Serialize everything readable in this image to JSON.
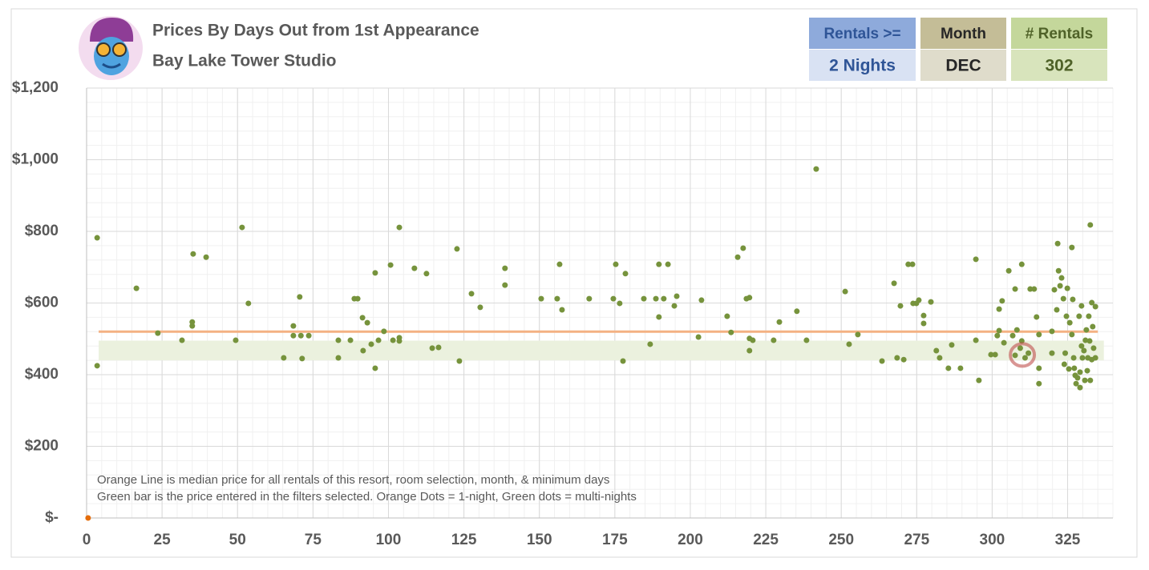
{
  "header": {
    "title": "Prices By Days Out from 1st Appearance",
    "subtitle": "Bay Lake Tower Studio"
  },
  "filters": [
    {
      "label": "Rentals >=",
      "value": "2 Nights",
      "head_color": "#8eaadb",
      "value_color": "#d9e2f3",
      "text_color": "#2f5597"
    },
    {
      "label": "Month",
      "value": "DEC",
      "head_color": "#c4bd97",
      "value_color": "#dfdccb",
      "text_color": "#262626"
    },
    {
      "label": "# Rentals",
      "value": "302",
      "head_color": "#c4d79b",
      "value_color": "#d8e4bc",
      "text_color": "#4f6228"
    }
  ],
  "chart_data": {
    "type": "scatter",
    "notes": [
      "Orange Line is median price for all rentals of this resort, room selection, month, & minimum days",
      "Green bar is the price entered in the filters selected. Orange Dots = 1-night, Green dots = multi-nights"
    ],
    "xlim": [
      0,
      340
    ],
    "xticks": [
      0,
      25,
      50,
      75,
      100,
      125,
      150,
      175,
      200,
      225,
      250,
      275,
      300,
      325
    ],
    "ylim": [
      0,
      1200
    ],
    "yticks": [
      {
        "value": 0,
        "label": "$-"
      },
      {
        "value": 200,
        "label": "$200"
      },
      {
        "value": 400,
        "label": "$400"
      },
      {
        "value": 600,
        "label": "$600"
      },
      {
        "value": 800,
        "label": "$800"
      },
      {
        "value": 1000,
        "label": "$1,000"
      },
      {
        "value": 1200,
        "label": "$1,200"
      }
    ],
    "grid": true,
    "minor_grid": true,
    "median": 520,
    "median_x": [
      4,
      335
    ],
    "median_color": "#f4b183",
    "band": [
      440,
      495
    ],
    "band_x": [
      4,
      337
    ],
    "band_color": "#ebf1de",
    "highlight": {
      "x": 310,
      "y": 455,
      "color": "#c0504d"
    },
    "series": [
      {
        "color": "#76933c",
        "x": [
          3.5,
          3.5,
          16.5,
          23.6,
          31.6,
          35.3,
          35,
          35,
          39.6,
          49.4,
          51.5,
          53.6,
          65.3,
          68.5,
          68.5,
          70.6,
          71,
          71.4,
          73.6,
          83.4,
          83.4,
          87.4,
          88.7,
          89.8,
          91.4,
          91.6,
          93,
          94.3,
          95.6,
          95.6,
          96.7,
          98.5,
          100.7,
          101.5,
          103.6,
          103.6,
          103.6,
          108.6,
          112.6,
          114.5,
          116.6,
          122.7,
          123.5,
          127.5,
          130.4,
          138.6,
          138.6,
          150.6,
          155.9,
          156.7,
          157.5,
          166.5,
          174.5,
          175.3,
          176.6,
          177.7,
          178.5,
          184.6,
          186.7,
          188.6,
          189.6,
          189.6,
          191.2,
          192.6,
          194.7,
          195.5,
          202.7,
          203.7,
          212.2,
          213.5,
          215.7,
          217.5,
          218.6,
          219.6,
          219.6,
          219.6,
          220.7,
          227.6,
          229.5,
          235.3,
          238.5,
          241.7,
          251.3,
          252.6,
          255.5,
          263.5,
          267.5,
          268.5,
          269.6,
          270.7,
          272.2,
          273.6,
          273.8,
          274.9,
          275.7,
          277.3,
          277.3,
          279.7,
          281.5,
          282.6,
          285.5,
          286.6,
          289.5,
          294.6,
          294.6,
          295.6,
          299.6,
          301,
          301.7,
          302.3,
          302.3,
          303.3,
          303.9,
          305.5,
          306.8,
          307.6,
          307.6,
          308.2,
          309.3,
          309.8,
          309.8,
          310.9,
          312,
          312.6,
          313.9,
          314.7,
          315.5,
          315.5,
          315.5,
          319.8,
          319.8,
          320.6,
          321.4,
          321.7,
          322,
          322.5,
          323,
          323.6,
          323.9,
          324.2,
          324.6,
          324.9,
          325.4,
          325.7,
          326.4,
          326.4,
          326.7,
          327,
          327.2,
          327.5,
          327.8,
          328.3,
          328.8,
          329.1,
          329.1,
          329.6,
          329.6,
          329.9,
          330.4,
          330.7,
          330.9,
          331.2,
          331.5,
          331.7,
          332,
          332.3,
          332.5,
          332.5,
          333,
          333,
          333.3,
          333.6,
          334.2,
          334.2
        ],
        "values": [
          782,
          425,
          641,
          516,
          496,
          737,
          547,
          536,
          728,
          496,
          811,
          599,
          447,
          536,
          509,
          617,
          509,
          445,
          509,
          496,
          447,
          496,
          612,
          612,
          559,
          467,
          545,
          485,
          684,
          418,
          496,
          521,
          706,
          496,
          811,
          503,
          494,
          697,
          682,
          474,
          476,
          751,
          438,
          626,
          588,
          697,
          650,
          612,
          612,
          708,
          581,
          612,
          612,
          708,
          599,
          438,
          682,
          612,
          485,
          612,
          561,
          708,
          612,
          708,
          592,
          619,
          505,
          608,
          563,
          518,
          728,
          753,
          612,
          615,
          501,
          467,
          496,
          496,
          547,
          577,
          496,
          974,
          632,
          485,
          512,
          438,
          655,
          447,
          592,
          442,
          708,
          708,
          599,
          599,
          608,
          565,
          543,
          603,
          467,
          447,
          418,
          483,
          418,
          722,
          496,
          384,
          456,
          456,
          509,
          523,
          583,
          606,
          489,
          690,
          509,
          639,
          454,
          525,
          474,
          708,
          494,
          447,
          460,
          639,
          639,
          561,
          418,
          375,
          512,
          521,
          460,
          637,
          581,
          766,
          690,
          648,
          670,
          612,
          429,
          460,
          563,
          641,
          416,
          545,
          755,
          512,
          610,
          447,
          418,
          398,
          375,
          391,
          563,
          407,
          364,
          592,
          480,
          447,
          467,
          384,
          496,
          525,
          411,
          447,
          563,
          494,
          818,
          384,
          601,
          442,
          534,
          474,
          590,
          447
        ]
      },
      {
        "color": "#e46c0a",
        "x": [
          0.5
        ],
        "values": [
          0
        ]
      }
    ]
  }
}
